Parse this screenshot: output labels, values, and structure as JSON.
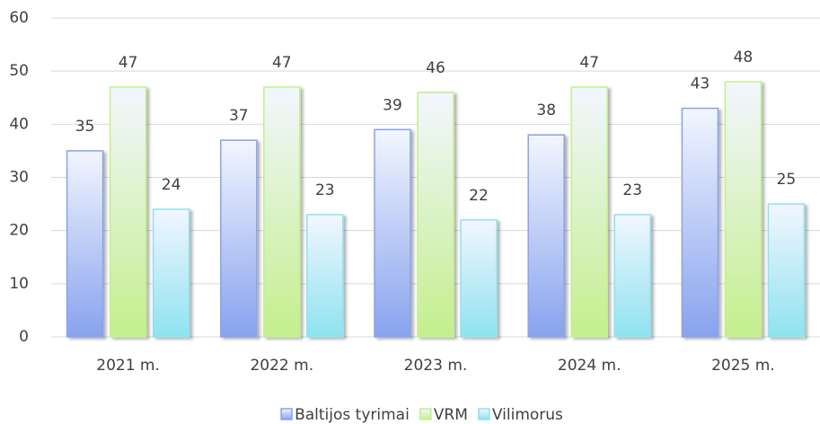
{
  "chart_data": {
    "type": "bar",
    "categories": [
      "2021 m.",
      "2022 m.",
      "2023 m.",
      "2024 m.",
      "2025 m."
    ],
    "series": [
      {
        "name": "Baltijos tyrimai",
        "color": "#88a2ee",
        "values": [
          35,
          37,
          39,
          38,
          43
        ]
      },
      {
        "name": "VRM",
        "color": "#c4ef8c",
        "values": [
          47,
          47,
          46,
          47,
          48
        ]
      },
      {
        "name": "Vilimorus",
        "color": "#8fe2ef",
        "values": [
          24,
          23,
          22,
          23,
          25
        ]
      }
    ],
    "ylim": [
      0,
      60
    ],
    "yticks": [
      0,
      10,
      20,
      30,
      40,
      50,
      60
    ],
    "grid": true,
    "legend": "bottom"
  }
}
